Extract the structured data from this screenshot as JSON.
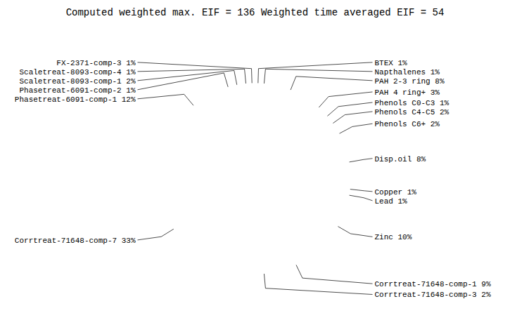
{
  "chart_data": {
    "type": "pie",
    "title": "Computed weighted max. EIF = 136    Weighted time averaged EIF = 54",
    "categories": [
      "BTEX 1%",
      "Napthalenes 1%",
      "PAH 2-3 ring 8%",
      "PAH 4 ring+ 3%",
      "Phenols C0-C3 1%",
      "Phenols C4-C5 2%",
      "Phenols C6+ 2%",
      "Disp.oil 8%",
      "Copper 1%",
      "Lead 1%",
      "Zinc 10%",
      "Corrtreat-71648-comp-1 9%",
      "Corrtreat-71648-comp-3 2%",
      "Corrtreat-71648-comp-7 33%",
      "Phasetreat-6091-comp-1 12%",
      "Phasetreat-6091-comp-2 1%",
      "Scaletreat-8093-comp-1 2%",
      "Scaletreat-8093-comp-4 1%",
      "FX-2371-comp-3 1%"
    ],
    "values": [
      1,
      1,
      8,
      3,
      1,
      2,
      2,
      8,
      1,
      1,
      10,
      9,
      2,
      33,
      12,
      1,
      2,
      1,
      1
    ],
    "colors": [
      "#8B1A1A",
      "#556B2F",
      "#6B8E23",
      "#483D8B",
      "#008B8B",
      "#D2691E",
      "#4169E1",
      "#A0522D",
      "#4682B4",
      "#8FBC8F",
      "#8DB600",
      "#CD5C5C",
      "#B0B0B0",
      "#6495ED",
      "#BC8F8F",
      "#F4A460",
      "#B0C4DE",
      "#DEB887",
      "#708090"
    ]
  }
}
